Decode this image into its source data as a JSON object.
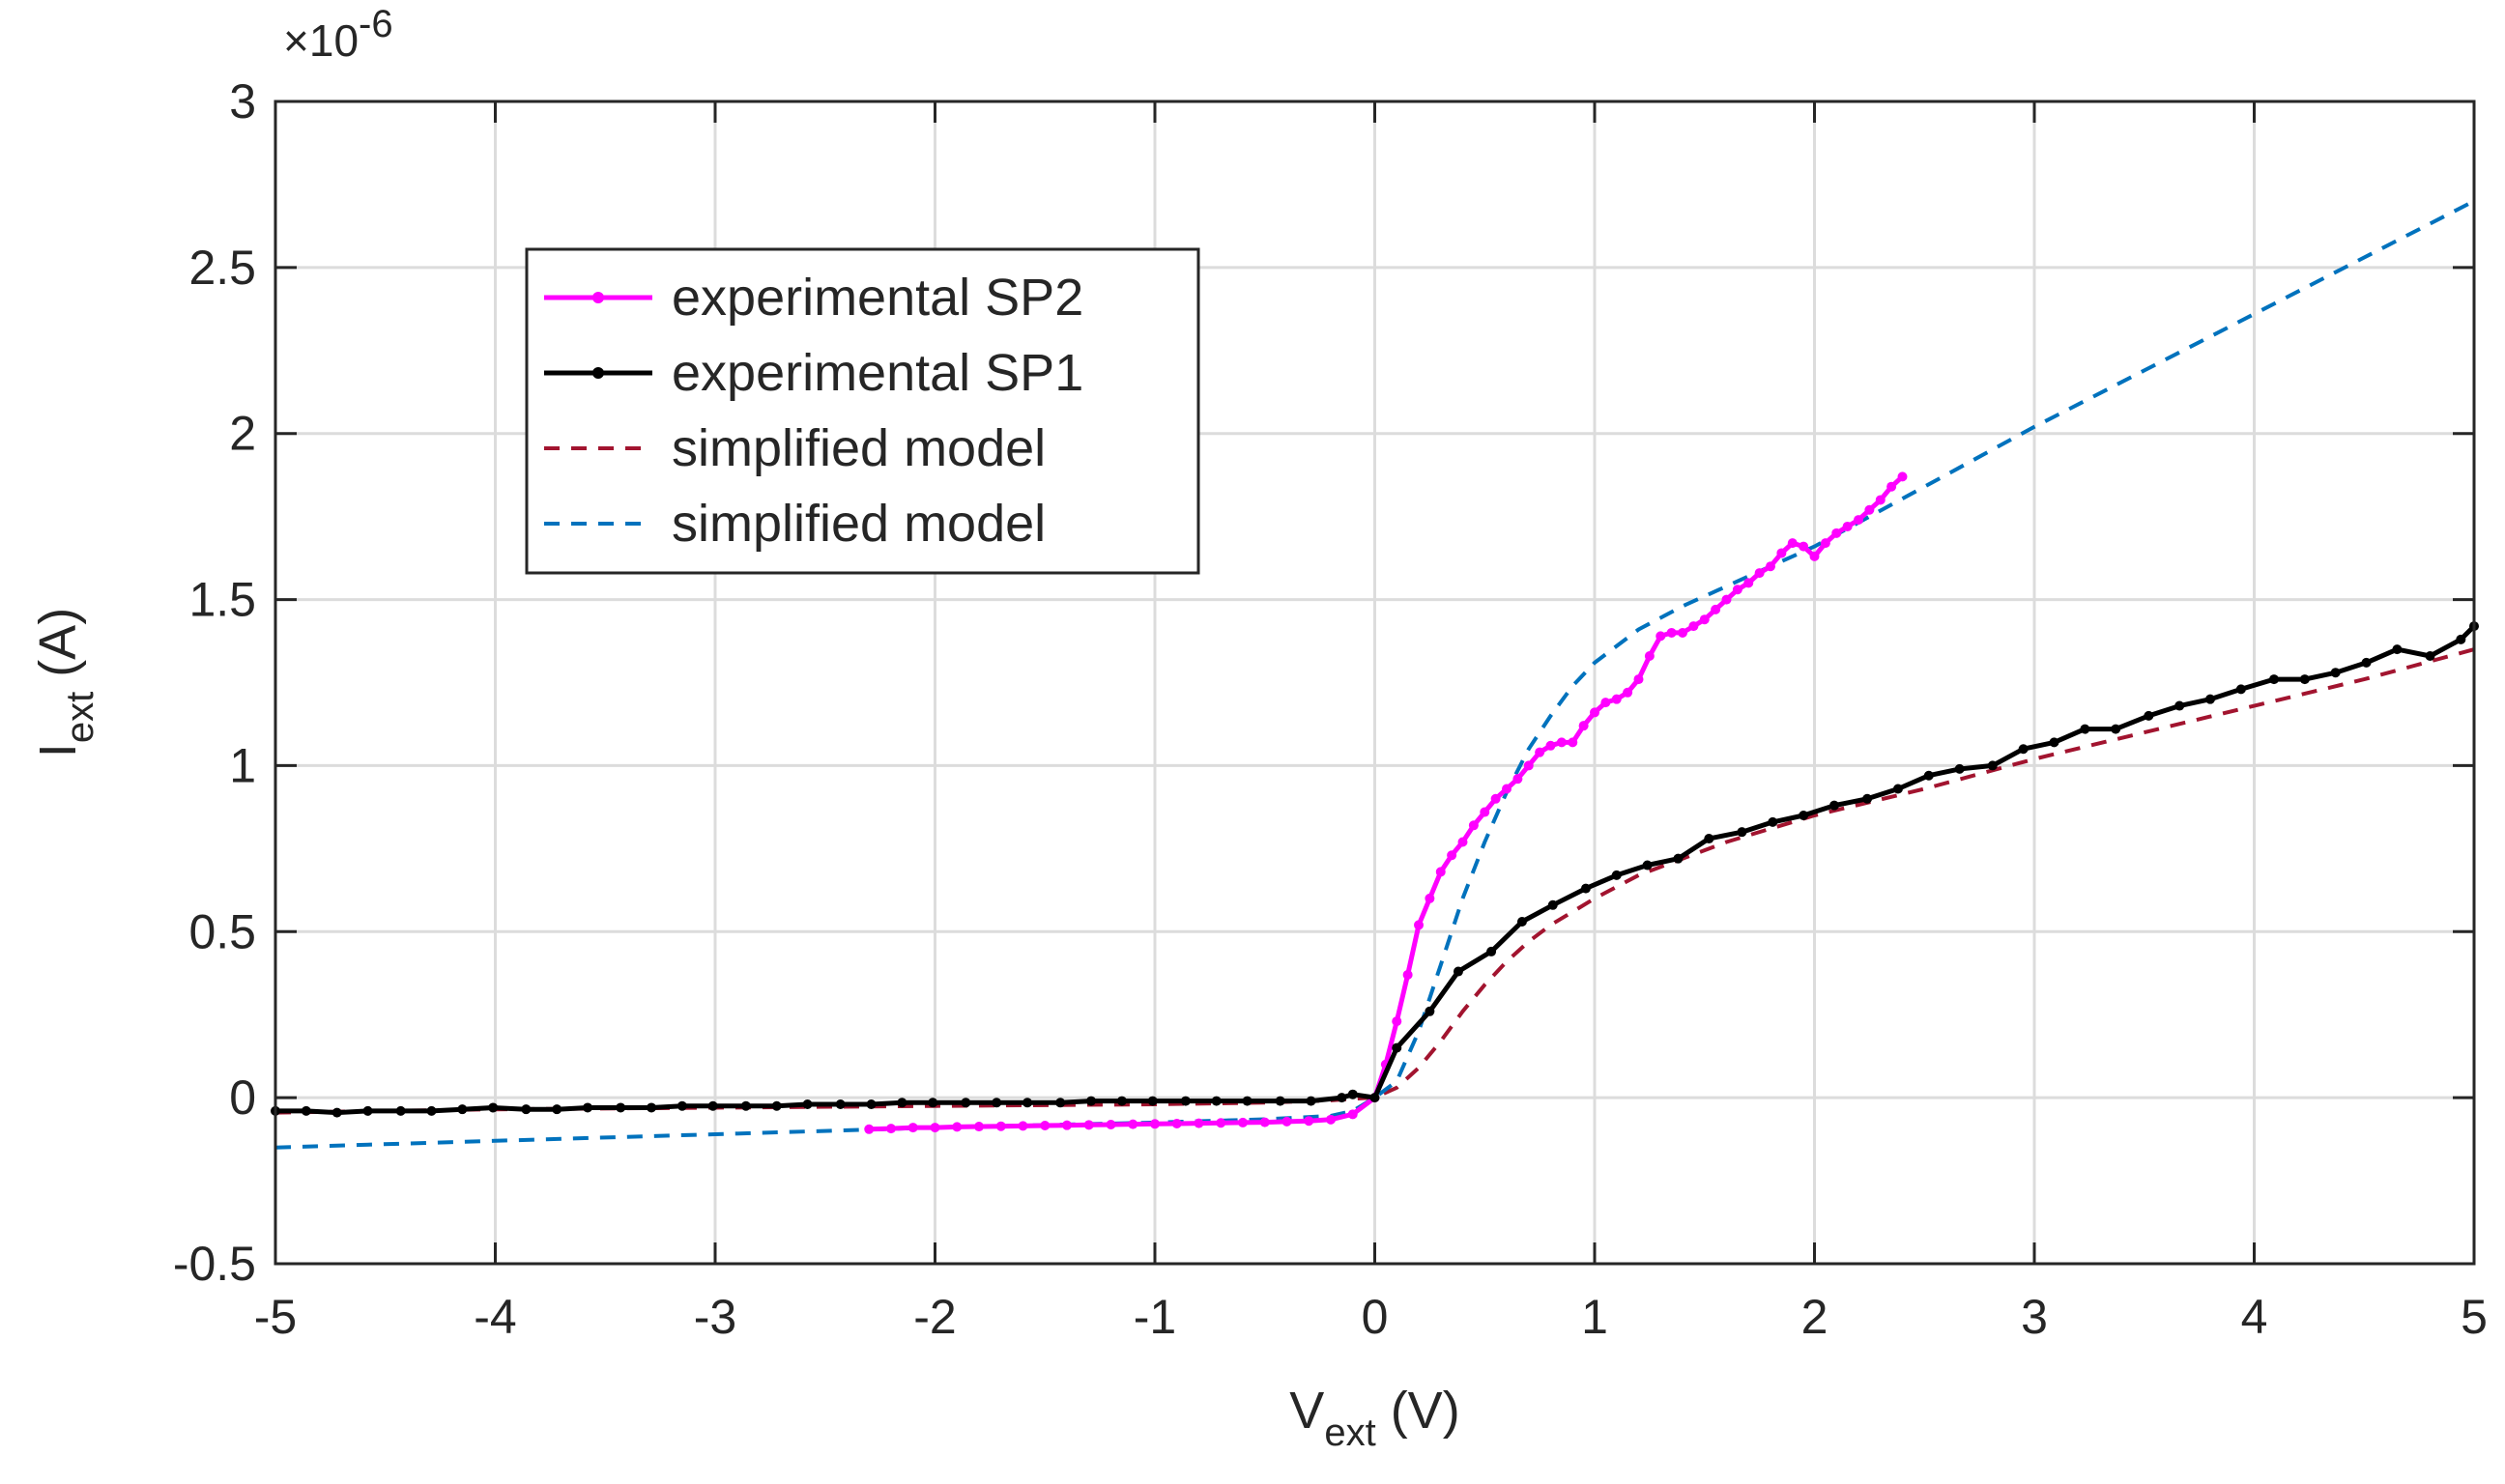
{
  "chart_data": {
    "type": "line",
    "title": "",
    "xlabel": {
      "main": "V",
      "sub": "ext",
      "unit": " (V)"
    },
    "ylabel": {
      "main": "I",
      "sub": "ext",
      "unit": " (A)"
    },
    "y_exponent": {
      "prefix": "×10",
      "power": "-6"
    },
    "xlim": [
      -5,
      5
    ],
    "ylim": [
      -0.5,
      3
    ],
    "x_ticks": [
      -5,
      -4,
      -3,
      -2,
      -1,
      0,
      1,
      2,
      3,
      4,
      5
    ],
    "x_tick_labels": [
      "-5",
      "-4",
      "-3",
      "-2",
      "-1",
      "0",
      "1",
      "2",
      "3",
      "4",
      "5"
    ],
    "y_ticks": [
      -0.5,
      0,
      0.5,
      1,
      1.5,
      2,
      2.5,
      3
    ],
    "y_tick_labels": [
      "-0.5",
      "0",
      "0.5",
      "1",
      "1.5",
      "2",
      "2.5",
      "3"
    ],
    "grid": true,
    "legend_position": "upper-left",
    "series": [
      {
        "name": "experimental SP2",
        "color": "#ff00ff",
        "style": "solid-marker",
        "x": [
          -2.3,
          -2.2,
          -2.1,
          -2.0,
          -1.9,
          -1.8,
          -1.7,
          -1.6,
          -1.5,
          -1.4,
          -1.3,
          -1.2,
          -1.1,
          -1.0,
          -0.9,
          -0.8,
          -0.7,
          -0.6,
          -0.5,
          -0.4,
          -0.3,
          -0.2,
          -0.1,
          0.0,
          0.05,
          0.1,
          0.15,
          0.2,
          0.25,
          0.3,
          0.35,
          0.4,
          0.45,
          0.5,
          0.55,
          0.6,
          0.65,
          0.7,
          0.75,
          0.8,
          0.85,
          0.9,
          0.95,
          1.0,
          1.05,
          1.1,
          1.15,
          1.2,
          1.25,
          1.3,
          1.35,
          1.4,
          1.45,
          1.5,
          1.55,
          1.6,
          1.65,
          1.7,
          1.75,
          1.8,
          1.85,
          1.9,
          1.95,
          2.0,
          2.05,
          2.1,
          2.15,
          2.2,
          2.25,
          2.3,
          2.35,
          2.4
        ],
        "y": [
          -0.095,
          -0.093,
          -0.09,
          -0.09,
          -0.088,
          -0.087,
          -0.086,
          -0.085,
          -0.084,
          -0.083,
          -0.082,
          -0.081,
          -0.08,
          -0.079,
          -0.078,
          -0.077,
          -0.076,
          -0.075,
          -0.074,
          -0.072,
          -0.07,
          -0.066,
          -0.05,
          0.0,
          0.1,
          0.23,
          0.37,
          0.52,
          0.6,
          0.68,
          0.73,
          0.77,
          0.82,
          0.86,
          0.9,
          0.93,
          0.96,
          1.0,
          1.04,
          1.06,
          1.07,
          1.07,
          1.12,
          1.16,
          1.19,
          1.2,
          1.22,
          1.26,
          1.33,
          1.39,
          1.4,
          1.4,
          1.42,
          1.44,
          1.47,
          1.5,
          1.53,
          1.55,
          1.58,
          1.6,
          1.64,
          1.67,
          1.66,
          1.63,
          1.67,
          1.7,
          1.72,
          1.74,
          1.77,
          1.8,
          1.84,
          1.87
        ]
      },
      {
        "name": "experimental SP1",
        "color": "#000000",
        "style": "solid-marker",
        "x": [
          -5.0,
          -4.86,
          -4.72,
          -4.58,
          -4.43,
          -4.29,
          -4.15,
          -4.01,
          -3.86,
          -3.72,
          -3.58,
          -3.43,
          -3.29,
          -3.15,
          -3.01,
          -2.86,
          -2.72,
          -2.58,
          -2.43,
          -2.29,
          -2.15,
          -2.01,
          -1.86,
          -1.72,
          -1.58,
          -1.43,
          -1.29,
          -1.15,
          -1.01,
          -0.86,
          -0.72,
          -0.58,
          -0.43,
          -0.29,
          -0.15,
          -0.1,
          0.0,
          0.1,
          0.25,
          0.38,
          0.53,
          0.67,
          0.81,
          0.96,
          1.1,
          1.24,
          1.38,
          1.52,
          1.67,
          1.81,
          1.95,
          2.09,
          2.24,
          2.38,
          2.52,
          2.66,
          2.81,
          2.95,
          3.09,
          3.23,
          3.37,
          3.52,
          3.66,
          3.8,
          3.94,
          4.09,
          4.23,
          4.37,
          4.51,
          4.65,
          4.8,
          4.94,
          5.0
        ],
        "y": [
          -0.04,
          -0.04,
          -0.045,
          -0.04,
          -0.04,
          -0.04,
          -0.035,
          -0.03,
          -0.035,
          -0.035,
          -0.03,
          -0.03,
          -0.03,
          -0.025,
          -0.025,
          -0.025,
          -0.025,
          -0.02,
          -0.02,
          -0.02,
          -0.015,
          -0.015,
          -0.015,
          -0.015,
          -0.015,
          -0.015,
          -0.01,
          -0.01,
          -0.01,
          -0.01,
          -0.01,
          -0.01,
          -0.01,
          -0.01,
          0.0,
          0.01,
          0.0,
          0.15,
          0.26,
          0.38,
          0.44,
          0.53,
          0.58,
          0.63,
          0.67,
          0.7,
          0.72,
          0.78,
          0.8,
          0.83,
          0.85,
          0.88,
          0.9,
          0.93,
          0.97,
          0.99,
          1.0,
          1.05,
          1.07,
          1.11,
          1.11,
          1.15,
          1.18,
          1.2,
          1.23,
          1.26,
          1.26,
          1.28,
          1.31,
          1.35,
          1.33,
          1.38,
          1.42
        ]
      },
      {
        "name": "simplified model",
        "color": "#a2142f",
        "style": "dashed",
        "x": [
          -5,
          -4,
          -3,
          -2,
          -1,
          -0.5,
          -0.2,
          -0.1,
          0,
          0.1,
          0.2,
          0.3,
          0.4,
          0.5,
          0.6,
          0.7,
          0.8,
          0.9,
          1.0,
          1.2,
          1.4,
          1.6,
          1.8,
          2.0,
          2.5,
          3.0,
          3.5,
          4.0,
          4.5,
          5.0
        ],
        "y": [
          -0.045,
          -0.035,
          -0.03,
          -0.025,
          -0.02,
          -0.015,
          -0.008,
          -0.003,
          0.0,
          0.03,
          0.09,
          0.17,
          0.26,
          0.34,
          0.41,
          0.47,
          0.52,
          0.56,
          0.6,
          0.67,
          0.72,
          0.77,
          0.81,
          0.85,
          0.93,
          1.02,
          1.1,
          1.18,
          1.26,
          1.35
        ]
      },
      {
        "name": "simplified model",
        "color": "#0072bd",
        "style": "dashed",
        "x": [
          -5,
          -4,
          -3,
          -2,
          -1,
          -0.5,
          -0.2,
          -0.1,
          0,
          0.1,
          0.2,
          0.3,
          0.4,
          0.5,
          0.6,
          0.7,
          0.8,
          0.9,
          1.0,
          1.2,
          1.4,
          1.6,
          1.8,
          2.0,
          2.5,
          3.0,
          3.5,
          4.0,
          4.5,
          5.0
        ],
        "y": [
          -0.15,
          -0.13,
          -0.11,
          -0.09,
          -0.075,
          -0.065,
          -0.055,
          -0.04,
          0.0,
          0.05,
          0.2,
          0.4,
          0.6,
          0.77,
          0.92,
          1.05,
          1.15,
          1.24,
          1.31,
          1.41,
          1.48,
          1.54,
          1.6,
          1.66,
          1.84,
          2.02,
          2.19,
          2.36,
          2.53,
          2.7
        ]
      }
    ]
  }
}
